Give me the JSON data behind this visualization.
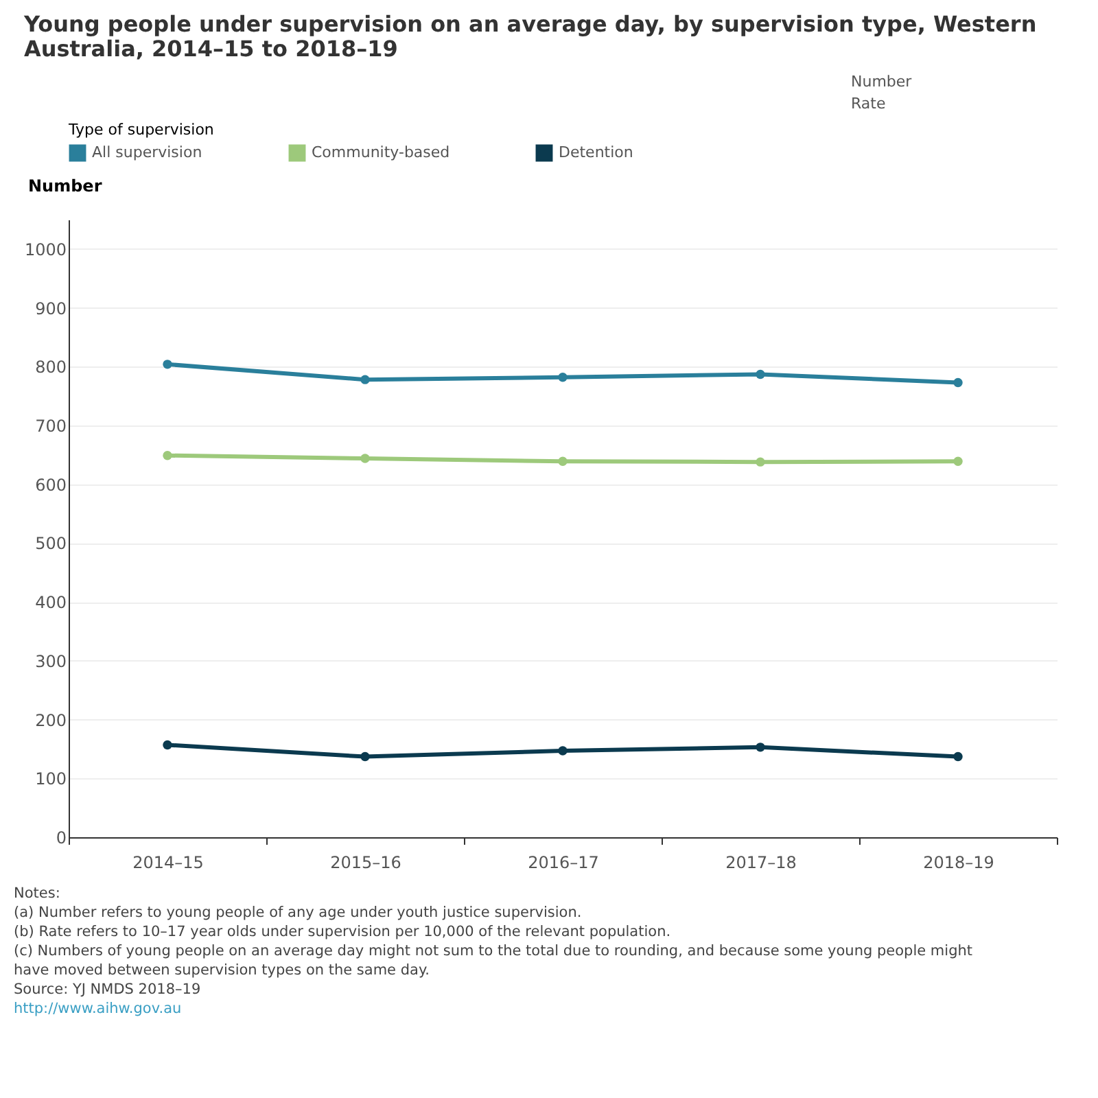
{
  "chart_data": {
    "type": "line",
    "title": "Young people under supervision on an average day, by supervision type, Western Australia, 2014–15 to 2018–19",
    "ylabel": "Number",
    "legend_title": "Type of supervision",
    "legend": "top left",
    "grid": "y",
    "marker": "circle",
    "line_style": "solid",
    "categories": [
      "2014–15",
      "2015–16",
      "2016–17",
      "2017–18",
      "2018–19"
    ],
    "series": [
      {
        "name": "All supervision",
        "color": "#2a7f9b",
        "values": [
          804,
          778,
          782,
          787,
          773
        ]
      },
      {
        "name": "Community-based",
        "color": "#9dc97b",
        "values": [
          649,
          644,
          639,
          638,
          639
        ]
      },
      {
        "name": "Detention",
        "color": "#0b3a4f",
        "values": [
          157,
          137,
          147,
          153,
          137
        ]
      }
    ],
    "ylim": [
      0,
      1050
    ],
    "yticks": [
      0,
      100,
      200,
      300,
      400,
      500,
      600,
      700,
      800,
      900,
      1000
    ],
    "annotations": [
      "Number",
      "Rate",
      "Notes:",
      "(a) Number refers to young people of any age under youth justice supervision.",
      "(b) Rate refers to 10–17 year olds under supervision per 10,000 of the relevant population.",
      "(c) Numbers of young people on an average day might not sum to the total due to rounding, and because some young people might have moved between supervision types on the same day.",
      "Source: YJ NMDS 2018–19",
      "http://www.aihw.gov.au"
    ]
  }
}
